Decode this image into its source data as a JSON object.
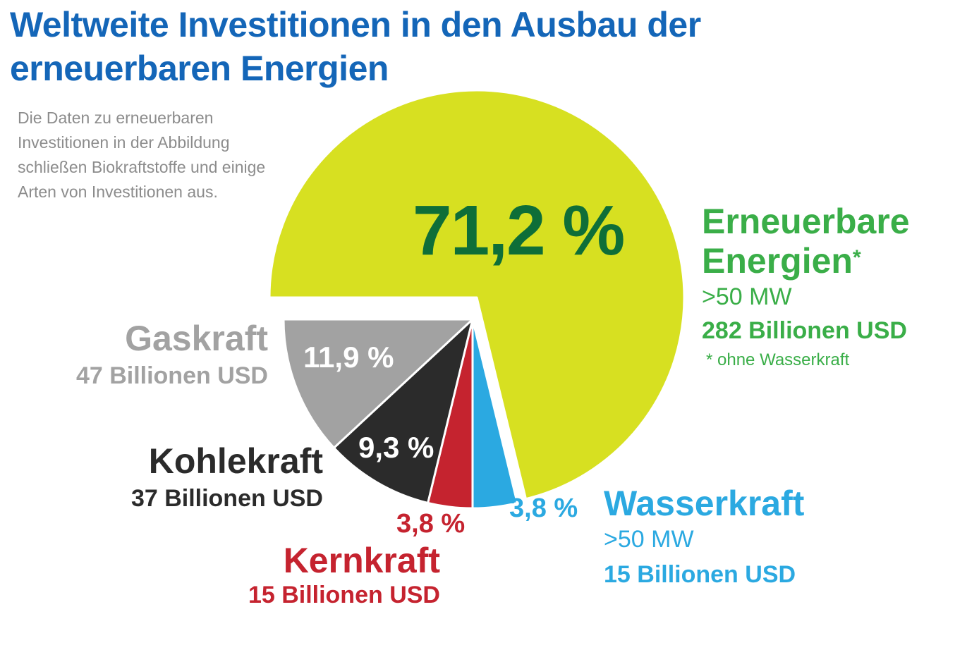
{
  "title": "Weltweite Investitionen in den Ausbau der erneuerbaren Energien",
  "note": "Die Daten zu erneuerbaren Investitionen in der Abbildung schließen Biokraftstoffe und einige Arten von Investitionen aus.",
  "colors": {
    "renewable": "#d7e021",
    "hydro": "#2ba9e1",
    "nuclear": "#c5232f",
    "coal": "#2b2b2b",
    "gas": "#a2a2a2",
    "title": "#1466b8"
  },
  "chart_data": {
    "type": "pie",
    "title": "Weltweite Investitionen in den Ausbau der erneuerbaren Energien",
    "unit": "Billionen USD",
    "slices": [
      {
        "name": "Erneuerbare Energien",
        "value": 71.2,
        "pct_label": "71,2 %",
        "detail": ">50 MW",
        "amount": "282 Billionen USD",
        "footnote": "* ohne Wasserkraft"
      },
      {
        "name": "Wasserkraft",
        "value": 3.8,
        "pct_label": "3,8 %",
        "detail": ">50 MW",
        "amount": "15 Billionen USD"
      },
      {
        "name": "Kernkraft",
        "value": 3.8,
        "pct_label": "3,8 %",
        "amount": "15 Billionen USD"
      },
      {
        "name": "Kohlekraft",
        "value": 9.3,
        "pct_label": "9,3 %",
        "amount": "37 Billionen USD"
      },
      {
        "name": "Gaskraft",
        "value": 11.9,
        "pct_label": "11,9 %",
        "amount": "47 Billionen USD"
      }
    ]
  }
}
